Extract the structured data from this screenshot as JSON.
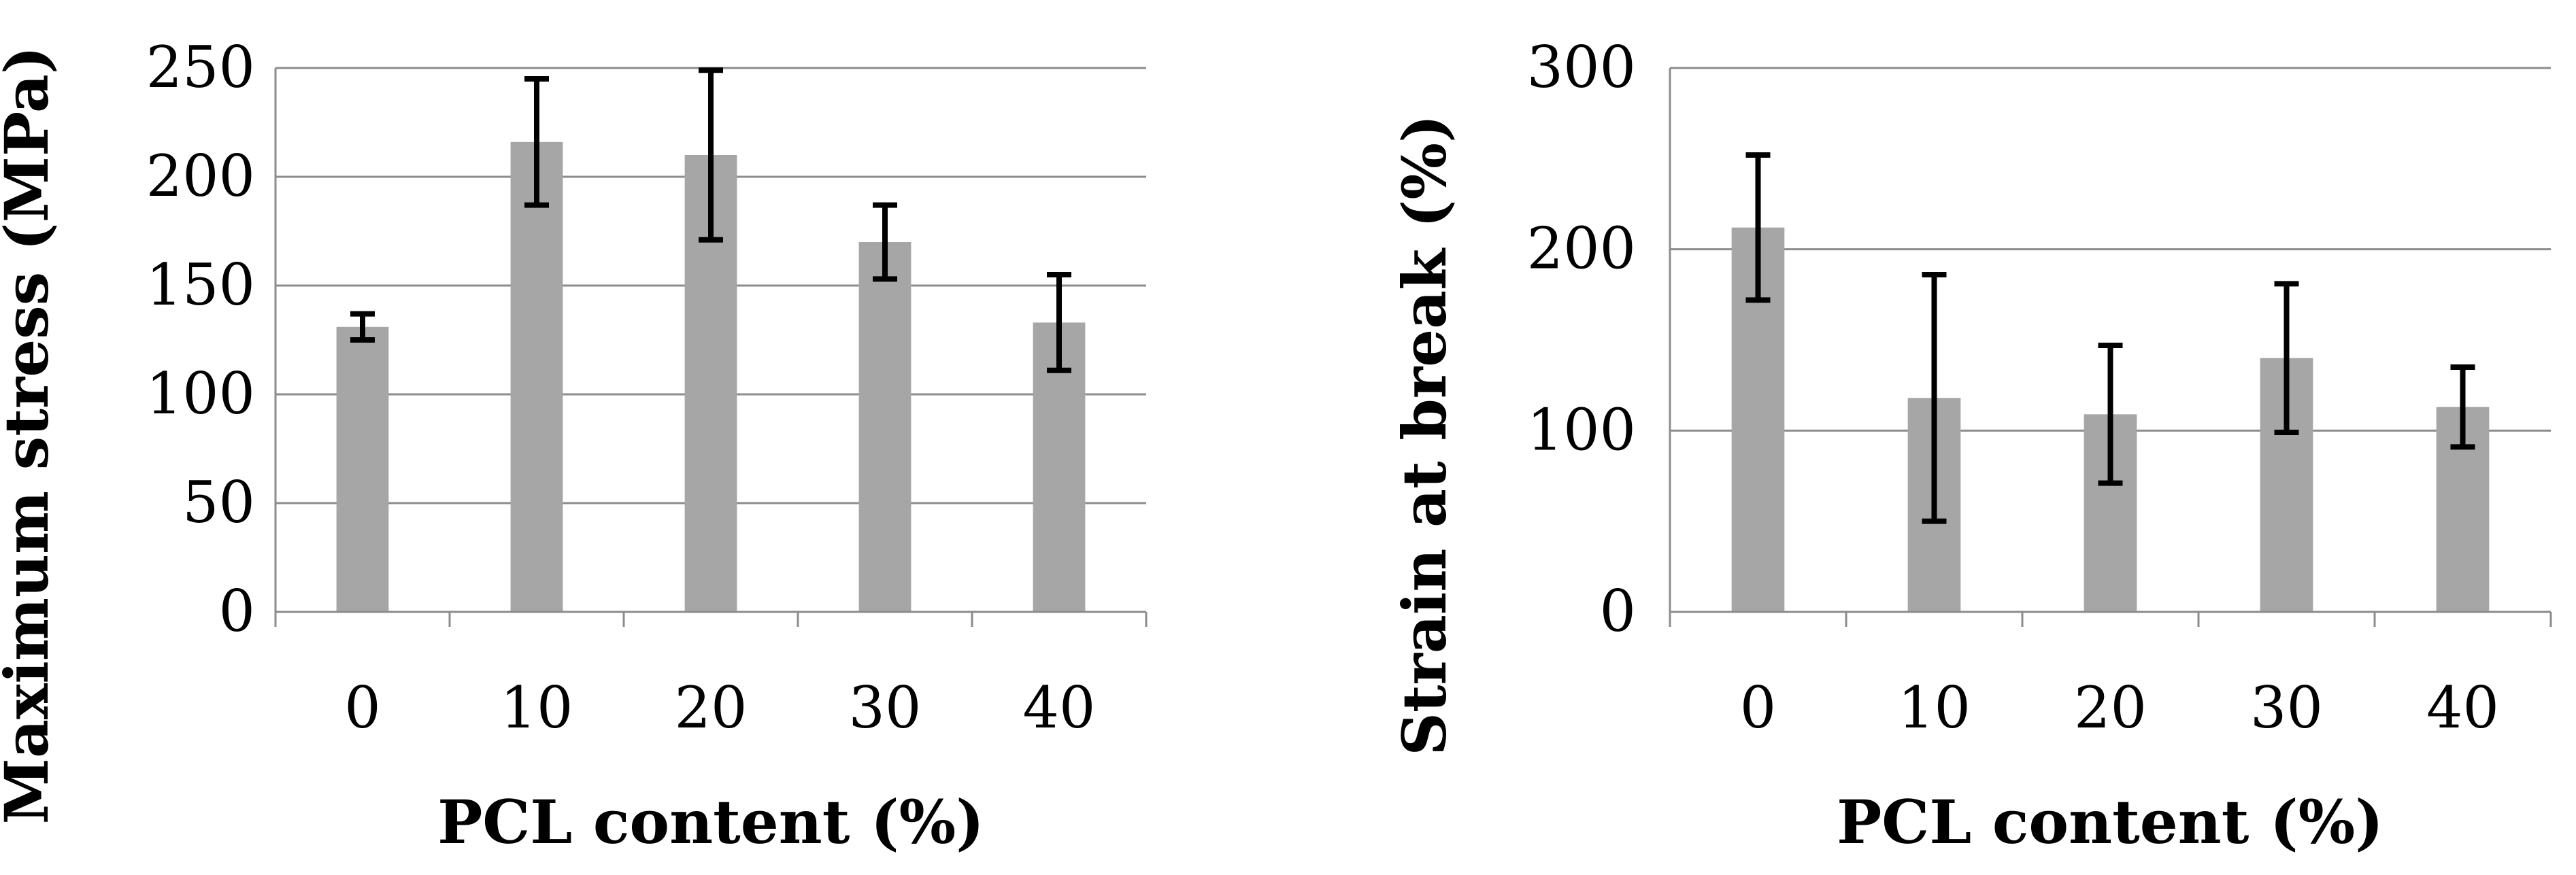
{
  "chart_data": [
    {
      "type": "bar",
      "title": "",
      "xlabel": "PCL content (%)",
      "ylabel": "Maximum stress (MPa)",
      "categories": [
        "0",
        "10",
        "20",
        "30",
        "40"
      ],
      "values": [
        131,
        216,
        210,
        170,
        133
      ],
      "error": [
        6,
        29,
        39,
        17,
        22
      ],
      "ylim": [
        0,
        250
      ],
      "yticks": [
        "0",
        "50",
        "100",
        "150",
        "200",
        "250"
      ],
      "grid": true,
      "bar_color": "#a6a6a6",
      "error_color": "#000000"
    },
    {
      "type": "bar",
      "title": "",
      "xlabel": "PCL content (%)",
      "ylabel": "Strain at break (%)",
      "categories": [
        "0",
        "10",
        "20",
        "30",
        "40"
      ],
      "values": [
        212,
        118,
        109,
        140,
        113
      ],
      "error": [
        40,
        68,
        38,
        41,
        22
      ],
      "ylim": [
        0,
        300
      ],
      "yticks": [
        "0",
        "100",
        "200",
        "300"
      ],
      "grid": true,
      "bar_color": "#a6a6a6",
      "error_color": "#000000"
    }
  ]
}
